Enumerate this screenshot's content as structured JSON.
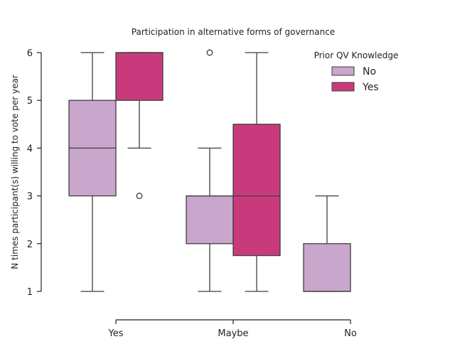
{
  "chart_data": {
    "type": "box",
    "title": "Participation in alternative forms of governance",
    "xlabel": "",
    "ylabel": "N times participant(s) willing to vote per year",
    "categories": [
      "Yes",
      "Maybe",
      "No"
    ],
    "ylim": [
      1,
      6
    ],
    "yticks": [
      1,
      2,
      3,
      4,
      5,
      6
    ],
    "grid": false,
    "legend": {
      "title": "Prior QV Knowledge",
      "placement": "top-right",
      "entries": [
        "No",
        "Yes"
      ]
    },
    "series": [
      {
        "name": "No",
        "color": "#c9a6cb",
        "boxes": [
          {
            "category": "Yes",
            "whisker_low": 1,
            "q1": 3,
            "median": 4,
            "q3": 5,
            "whisker_high": 6,
            "outliers": []
          },
          {
            "category": "Maybe",
            "whisker_low": 1,
            "q1": 2,
            "median": 3,
            "q3": 3,
            "whisker_high": 4,
            "outliers": [
              6
            ]
          },
          {
            "category": "No",
            "whisker_low": 1,
            "q1": 1,
            "median": 1,
            "q3": 2,
            "whisker_high": 3,
            "outliers": []
          }
        ]
      },
      {
        "name": "Yes",
        "color": "#c93a7c",
        "boxes": [
          {
            "category": "Yes",
            "whisker_low": 4,
            "q1": 5,
            "median": 6,
            "q3": 6,
            "whisker_high": 6,
            "outliers": [
              3
            ]
          },
          {
            "category": "Maybe",
            "whisker_low": 1,
            "q1": 1.75,
            "median": 3,
            "q3": 4.5,
            "whisker_high": 6,
            "outliers": []
          }
        ]
      }
    ]
  }
}
